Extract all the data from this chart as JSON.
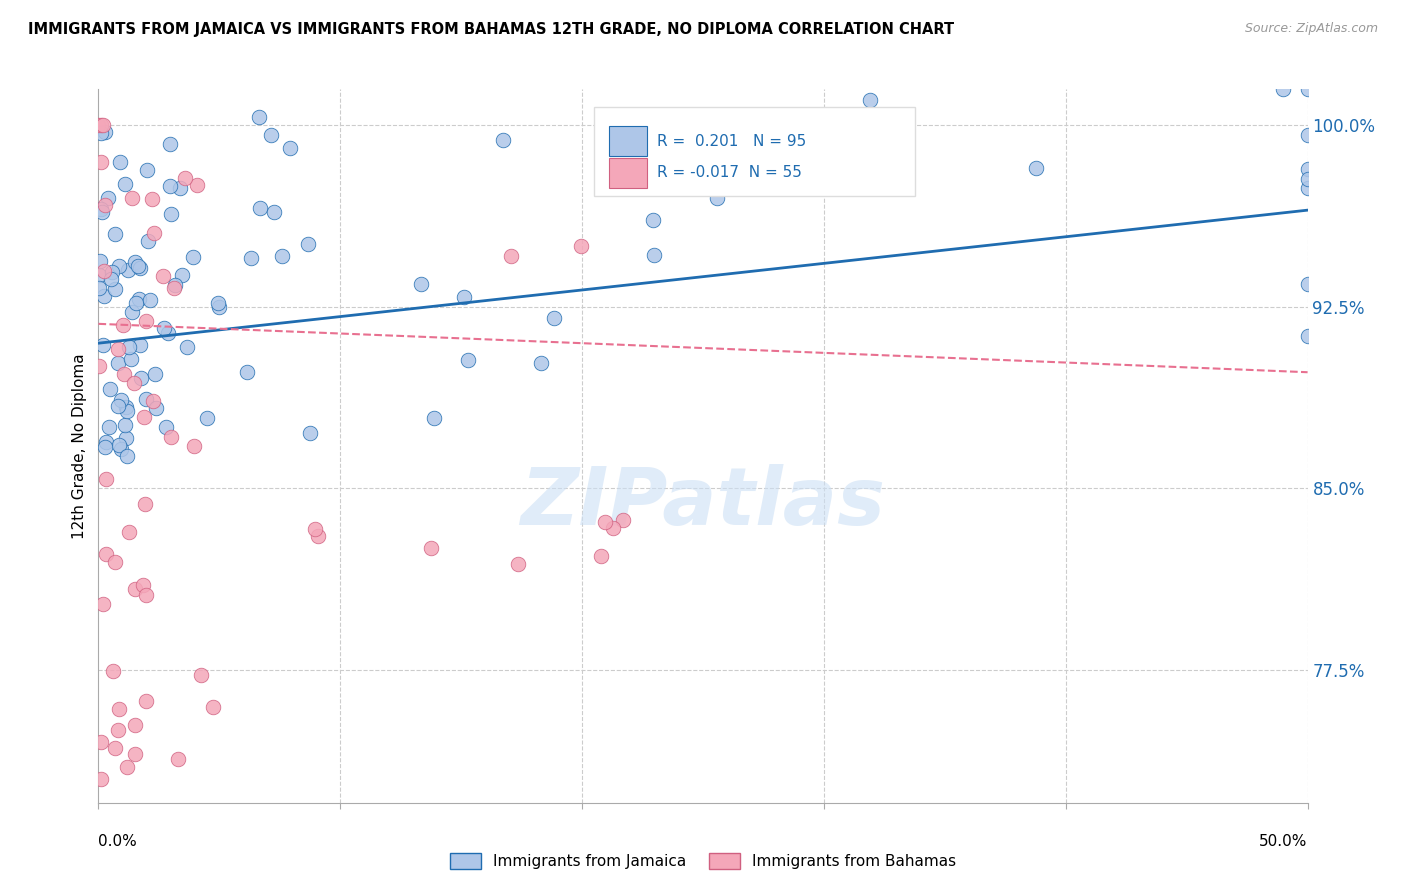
{
  "title": "IMMIGRANTS FROM JAMAICA VS IMMIGRANTS FROM BAHAMAS 12TH GRADE, NO DIPLOMA CORRELATION CHART",
  "source": "Source: ZipAtlas.com",
  "ylabel": "12th Grade, No Diploma",
  "yticks": [
    100.0,
    92.5,
    85.0,
    77.5
  ],
  "ytick_labels": [
    "100.0%",
    "92.5%",
    "85.0%",
    "77.5%"
  ],
  "xmin": 0.0,
  "xmax": 0.5,
  "ymin": 72.0,
  "ymax": 101.5,
  "legend_R_jamaica": "0.201",
  "legend_N_jamaica": "95",
  "legend_R_bahamas": "-0.017",
  "legend_N_bahamas": "55",
  "color_jamaica": "#aec6e8",
  "color_bahamas": "#f4a7b9",
  "line_jamaica": "#1f6cb0",
  "line_bahamas": "#e87090",
  "watermark": "ZIPatlas",
  "j_line_x0": 0.0,
  "j_line_x1": 0.5,
  "j_line_y0": 91.0,
  "j_line_y1": 96.5,
  "b_line_x0": 0.0,
  "b_line_x1": 0.5,
  "b_line_y0": 91.8,
  "b_line_y1": 89.8
}
